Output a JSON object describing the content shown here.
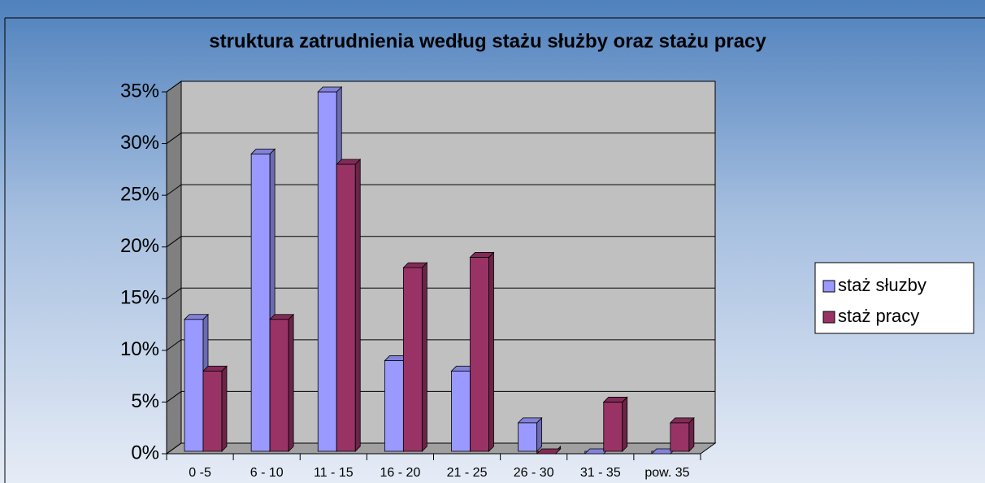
{
  "chart_data": {
    "type": "bar3d",
    "title": "struktura zatrudnienia według stażu służby oraz stażu pracy",
    "categories": [
      "0 -5",
      "6 - 10",
      "11 - 15",
      "16 - 20",
      "21 - 25",
      "26 - 30",
      "31 - 35",
      "pow. 35"
    ],
    "series": [
      {
        "name": "staż słuzby",
        "color": "#9999ff",
        "values": [
          13,
          29,
          35,
          9,
          8,
          3,
          0,
          0
        ]
      },
      {
        "name": "staż pracy",
        "color": "#993366",
        "values": [
          8,
          13,
          28,
          18,
          19,
          0,
          5,
          3
        ]
      }
    ],
    "ylim": [
      0,
      35
    ],
    "yticks": [
      {
        "value": 0,
        "label": "0%"
      },
      {
        "value": 5,
        "label": "5%"
      },
      {
        "value": 10,
        "label": "10%"
      },
      {
        "value": 15,
        "label": "15%"
      },
      {
        "value": 20,
        "label": "20%"
      },
      {
        "value": 25,
        "label": "25%"
      },
      {
        "value": 30,
        "label": "30%"
      },
      {
        "value": 35,
        "label": "35%"
      }
    ],
    "grid": true,
    "legend": "right"
  }
}
